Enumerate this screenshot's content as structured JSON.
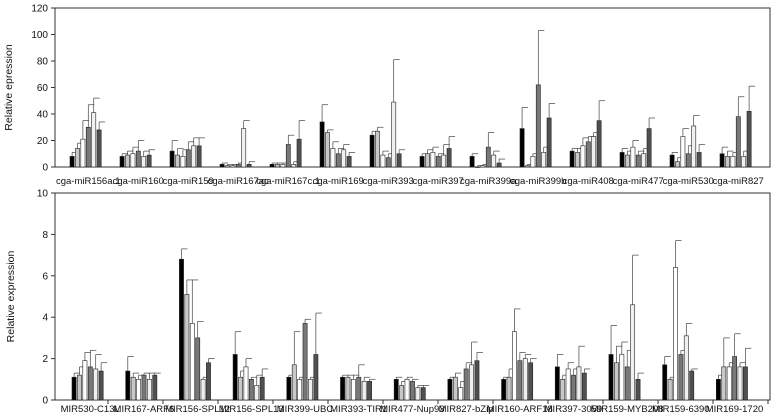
{
  "chart_data": [
    {
      "type": "bar",
      "ylabel": "Relative epression",
      "ylim": [
        0,
        120
      ],
      "yticks": [
        0,
        20,
        40,
        60,
        80,
        100,
        120
      ],
      "bar_colors": [
        "#000000",
        "#c8c8c8",
        "#ffffff",
        "#787878",
        "#f0f0f0",
        "#505050",
        "#a0a0a0"
      ],
      "categories": [
        "cga-miR156a.1",
        "cga-miR160",
        "cga-miR159",
        "cga-miR167ac",
        "cga-miR167c.1",
        "cga-miR169",
        "cga-miR393",
        "cga-miR397",
        "cga-miR399a",
        "cga-miR399b",
        "cga-miR408",
        "cga-miR477",
        "cga-miR530",
        "cga-miR827"
      ],
      "values": [
        [
          8,
          14,
          21,
          30,
          41,
          28
        ],
        [
          8,
          9,
          10,
          12,
          8,
          9
        ],
        [
          12,
          9,
          8,
          13,
          16,
          16
        ],
        [
          2,
          1,
          1,
          2,
          29,
          2
        ],
        [
          2,
          2,
          2,
          17,
          2,
          21
        ],
        [
          34,
          26,
          14,
          10,
          13,
          8
        ],
        [
          24,
          27,
          9,
          7,
          49,
          10
        ],
        [
          8,
          10,
          11,
          8,
          9,
          14
        ],
        [
          8,
          0,
          1,
          15,
          9,
          3
        ],
        [
          29,
          1,
          8,
          62,
          11,
          37
        ],
        [
          12,
          11,
          16,
          19,
          23,
          35
        ],
        [
          11,
          9,
          15,
          9,
          10,
          29
        ],
        [
          9,
          4,
          23,
          10,
          31,
          11
        ],
        [
          10,
          8,
          8,
          38,
          8,
          42
        ]
      ],
      "errors": [
        [
          3,
          4,
          14,
          17,
          11,
          6
        ],
        [
          2,
          3,
          5,
          8,
          4,
          4
        ],
        [
          8,
          5,
          5,
          6,
          6,
          6
        ],
        [
          1,
          1,
          1,
          1,
          6,
          2
        ],
        [
          1,
          1,
          1,
          7,
          2,
          14
        ],
        [
          13,
          2,
          5,
          4,
          4,
          3
        ],
        [
          3,
          3,
          3,
          3,
          32,
          3
        ],
        [
          2,
          3,
          4,
          2,
          8,
          9
        ],
        [
          2,
          1,
          1,
          11,
          3,
          3
        ],
        [
          16,
          1,
          2,
          41,
          4,
          11
        ],
        [
          2,
          3,
          6,
          4,
          3,
          15
        ],
        [
          3,
          3,
          5,
          3,
          4,
          8
        ],
        [
          2,
          3,
          6,
          6,
          8,
          6
        ],
        [
          5,
          4,
          3,
          15,
          4,
          19
        ]
      ]
    },
    {
      "type": "bar",
      "ylabel": "Relative expression",
      "ylim": [
        0,
        10
      ],
      "yticks": [
        0,
        2,
        4,
        6,
        8,
        10
      ],
      "bar_colors": [
        "#000000",
        "#c8c8c8",
        "#ffffff",
        "#787878",
        "#f0f0f0",
        "#505050",
        "#a0a0a0"
      ],
      "categories": [
        "MIR530-C13L",
        "MIR167-ARF6",
        "MIR156-SPL12",
        "MIR156-SPL13",
        "MIR399-UBC",
        "MIR393-TIR1",
        "MIR477-Nup93",
        "MIR827-bZip",
        "MIR160-ARF18",
        "MIR397-3059",
        "MIR159-MYB208",
        "MIR159-6390",
        "MIR169-1720"
      ],
      "values": [
        [
          1.1,
          1.2,
          1.9,
          1.6,
          1.5,
          1.4
        ],
        [
          1.4,
          1.1,
          1.0,
          1.2,
          1.0,
          1.2
        ],
        [
          6.8,
          5.1,
          3.7,
          3.0,
          1.0,
          1.8
        ],
        [
          2.2,
          1.1,
          1.6,
          1.0,
          0.7,
          1.1
        ],
        [
          1.1,
          1.7,
          1.0,
          3.7,
          1.0,
          2.2
        ],
        [
          1.1,
          1.1,
          1.0,
          1.1,
          0.9,
          0.9
        ],
        [
          1.0,
          0.7,
          1.0,
          0.9,
          0.6,
          0.6
        ],
        [
          1.0,
          1.1,
          0.6,
          1.5,
          1.7,
          1.9
        ],
        [
          1.0,
          1.1,
          3.3,
          1.9,
          2.0,
          1.8
        ],
        [
          1.6,
          1.0,
          1.5,
          1.2,
          1.6,
          1.3
        ],
        [
          2.2,
          1.8,
          2.2,
          1.6,
          4.6,
          1.0
        ],
        [
          1.7,
          1.0,
          6.4,
          2.2,
          3.1,
          1.4
        ],
        [
          1.0,
          1.6,
          1.6,
          2.1,
          1.6,
          1.6
        ]
      ],
      "errors": [
        [
          0.2,
          0.4,
          0.4,
          0.8,
          0.7,
          0.4
        ],
        [
          0.7,
          0.2,
          0.2,
          0.1,
          0.3,
          0.1
        ],
        [
          0.5,
          0.7,
          2.1,
          0.8,
          0.1,
          0.2
        ],
        [
          1.1,
          0.3,
          0.4,
          0.1,
          0.5,
          0.4
        ],
        [
          0.1,
          1.6,
          0.1,
          0.2,
          0.1,
          2.0
        ],
        [
          0.1,
          0.1,
          0.2,
          0.6,
          0.2,
          0.1
        ],
        [
          0.1,
          0.2,
          0.1,
          0.1,
          0.1,
          0.1
        ],
        [
          0.1,
          0.2,
          0.3,
          0.3,
          1.1,
          0.4
        ],
        [
          0.1,
          0.4,
          1.1,
          0.4,
          0.2,
          0.2
        ],
        [
          0.6,
          0.2,
          0.3,
          0.3,
          1.0,
          0.2
        ],
        [
          1.4,
          0.8,
          0.6,
          0.8,
          2.4,
          0.3
        ],
        [
          0.4,
          0.1,
          1.3,
          0.2,
          0.6,
          0.1
        ],
        [
          0.2,
          1.4,
          0.2,
          1.1,
          0.2,
          0.9
        ]
      ]
    }
  ]
}
